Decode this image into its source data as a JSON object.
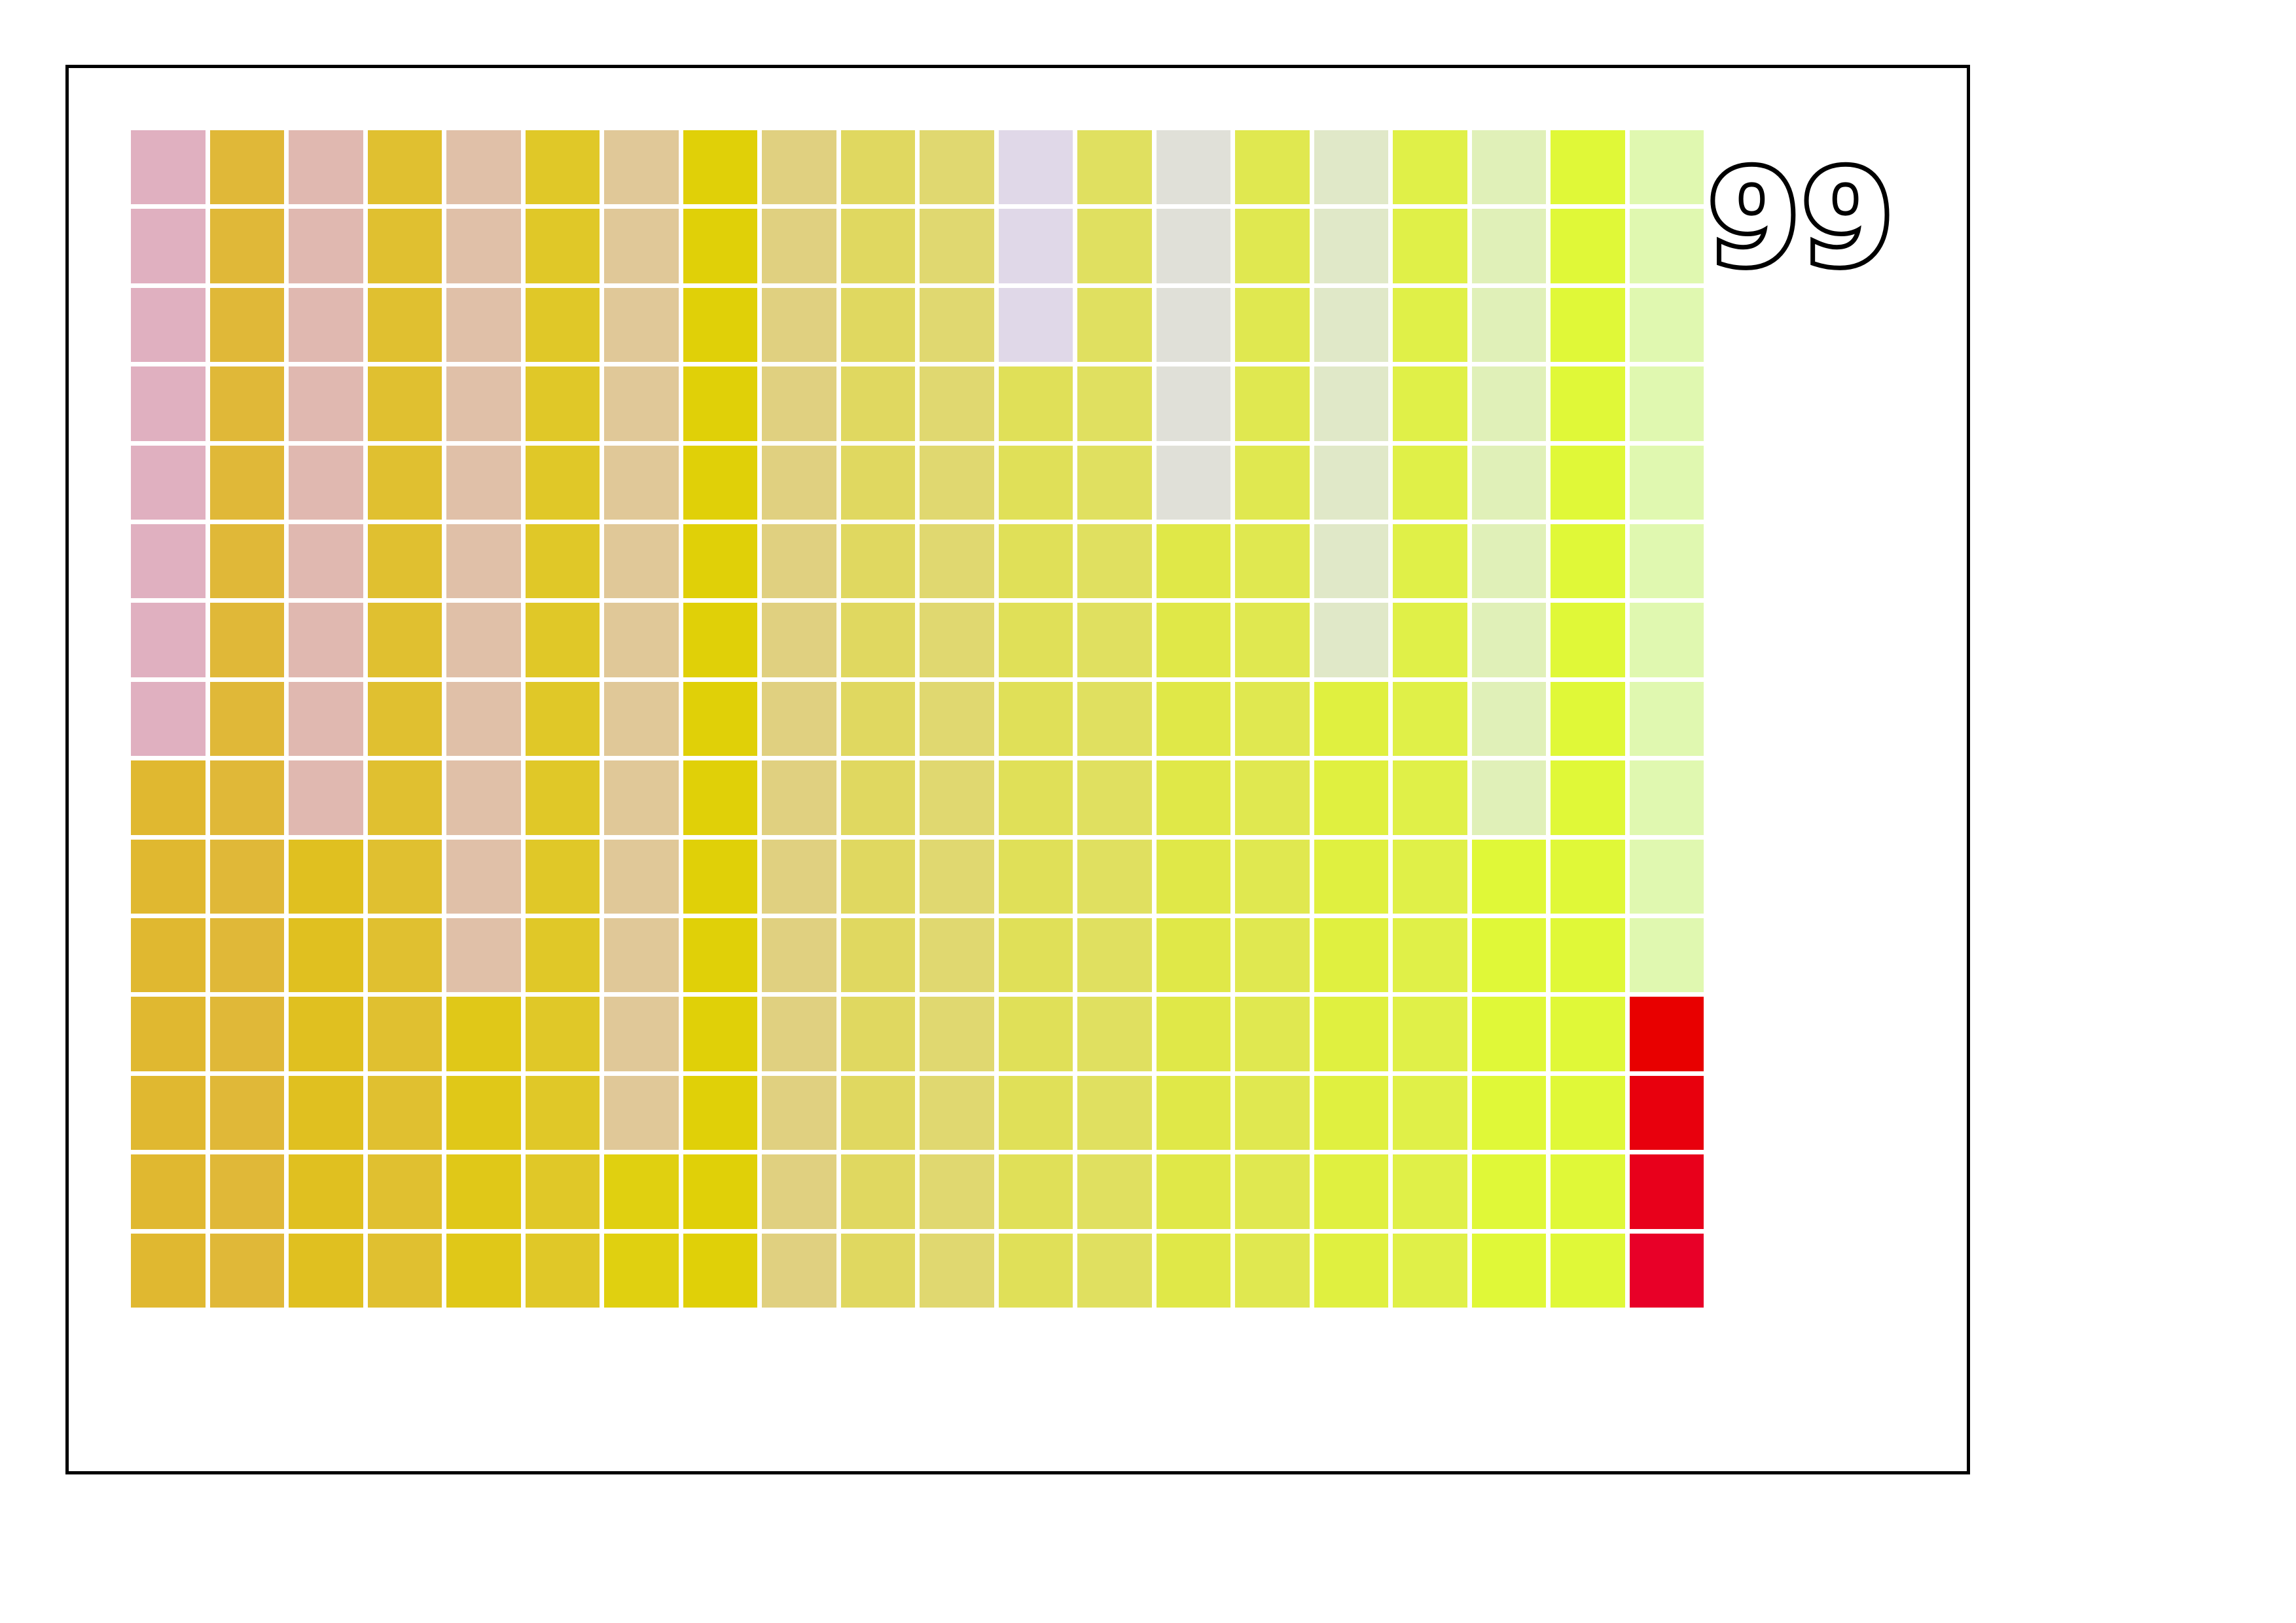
{
  "score": {
    "value": "99"
  },
  "grid": {
    "rows": 15,
    "cols": 20,
    "odd_col_target_color": "#e8001c",
    "columns": [
      {
        "top": "#e0b0c0",
        "bottom": "#e0b830",
        "target_row": 8
      },
      {
        "top": "#e0b838",
        "bottom": "#e0b8a0",
        "target_row": -1
      },
      {
        "top": "#e0b8b0",
        "bottom": "#e0c020",
        "target_row": 9
      },
      {
        "top": "#e0c030",
        "bottom": "#e0c090",
        "target_row": -1
      },
      {
        "top": "#e0c0a8",
        "bottom": "#e0c818",
        "target_row": 11
      },
      {
        "top": "#e0c828",
        "bottom": "#e0c880",
        "target_row": -1
      },
      {
        "top": "#e0c898",
        "bottom": "#e0d010",
        "target_row": 13
      },
      {
        "top": "#e0d008",
        "bottom": "#e0d070",
        "target_row": -1
      },
      {
        "top": "#e0d080",
        "bottom": "#e0d0f0",
        "target_row": -1
      },
      {
        "top": "#e0d0f0",
        "bottom": "#e0d860",
        "target_row": 0
      },
      {
        "top": "#e0d870",
        "bottom": "#e0d8d8",
        "target_row": -1
      },
      {
        "top": "#e0d8e8",
        "bottom": "#e0e058",
        "target_row": 3
      },
      {
        "top": "#e0e060",
        "bottom": "#e0e0c8",
        "target_row": -1
      },
      {
        "top": "#e0e0d8",
        "bottom": "#e0e848",
        "target_row": 5
      },
      {
        "top": "#e0e850",
        "bottom": "#e0e8b8",
        "target_row": -1
      },
      {
        "top": "#e0e8c8",
        "bottom": "#e0f040",
        "target_row": 7
      },
      {
        "top": "#e0f048",
        "bottom": "#e0f0a8",
        "target_row": -1
      },
      {
        "top": "#e0f0b8",
        "bottom": "#e0f838",
        "target_row": 9
      },
      {
        "top": "#e0f838",
        "bottom": "#e0f8a0",
        "target_row": -1
      },
      {
        "top": "#e0f8b0",
        "bottom": "#e0f8f0",
        "target_row": 11
      }
    ]
  }
}
